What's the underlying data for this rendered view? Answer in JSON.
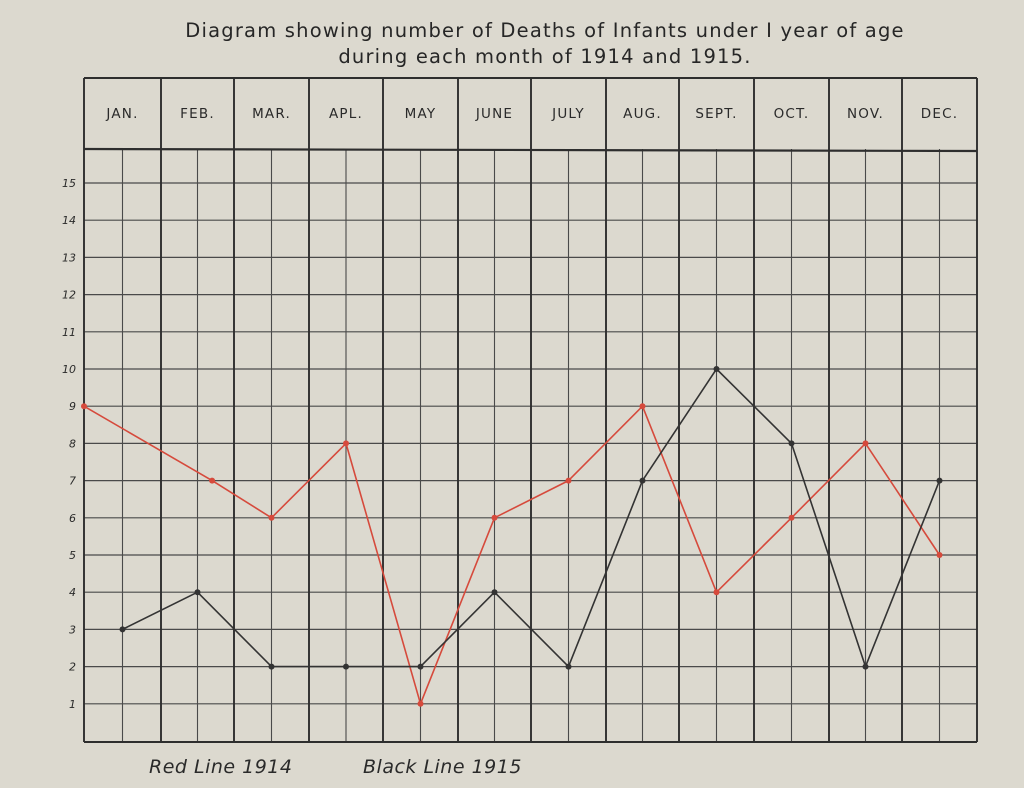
{
  "chart_data": {
    "type": "line",
    "title_line1": "Diagram showing number of Deaths of Infants under I year of age",
    "title_line2": "during each month of 1914 and 1915.",
    "categories": [
      "JAN.",
      "FEB.",
      "MAR.",
      "APL.",
      "MAY",
      "JUNE",
      "JULY",
      "AUG.",
      "SEPT.",
      "OCT.",
      "NOV.",
      "DEC."
    ],
    "y_ticks": [
      "1",
      "2",
      "3",
      "4",
      "5",
      "6",
      "7",
      "8",
      "9",
      "10",
      "11",
      "12",
      "13",
      "14",
      "15"
    ],
    "ylim": [
      0,
      16
    ],
    "grid": true,
    "series": [
      {
        "name": "Red Line 1914",
        "color": "#d64a3c",
        "points": [
          [
            0.0,
            9
          ],
          [
            1.7,
            7
          ],
          [
            2.5,
            6
          ],
          [
            3.5,
            8
          ],
          [
            4.5,
            1
          ],
          [
            5.5,
            6
          ],
          [
            6.5,
            7
          ],
          [
            7.5,
            9
          ],
          [
            8.5,
            4
          ],
          [
            9.5,
            6
          ],
          [
            10.5,
            8
          ],
          [
            11.5,
            5
          ]
        ]
      },
      {
        "name": "Black Line 1915",
        "color": "#333333",
        "points": [
          [
            0.5,
            3
          ],
          [
            1.5,
            4
          ],
          [
            2.5,
            2
          ],
          [
            3.5,
            2
          ],
          [
            4.5,
            2
          ],
          [
            5.5,
            4
          ],
          [
            6.5,
            2
          ],
          [
            7.5,
            7
          ],
          [
            8.5,
            10
          ],
          [
            9.5,
            8
          ],
          [
            10.5,
            2
          ],
          [
            11.5,
            7
          ]
        ]
      }
    ]
  }
}
